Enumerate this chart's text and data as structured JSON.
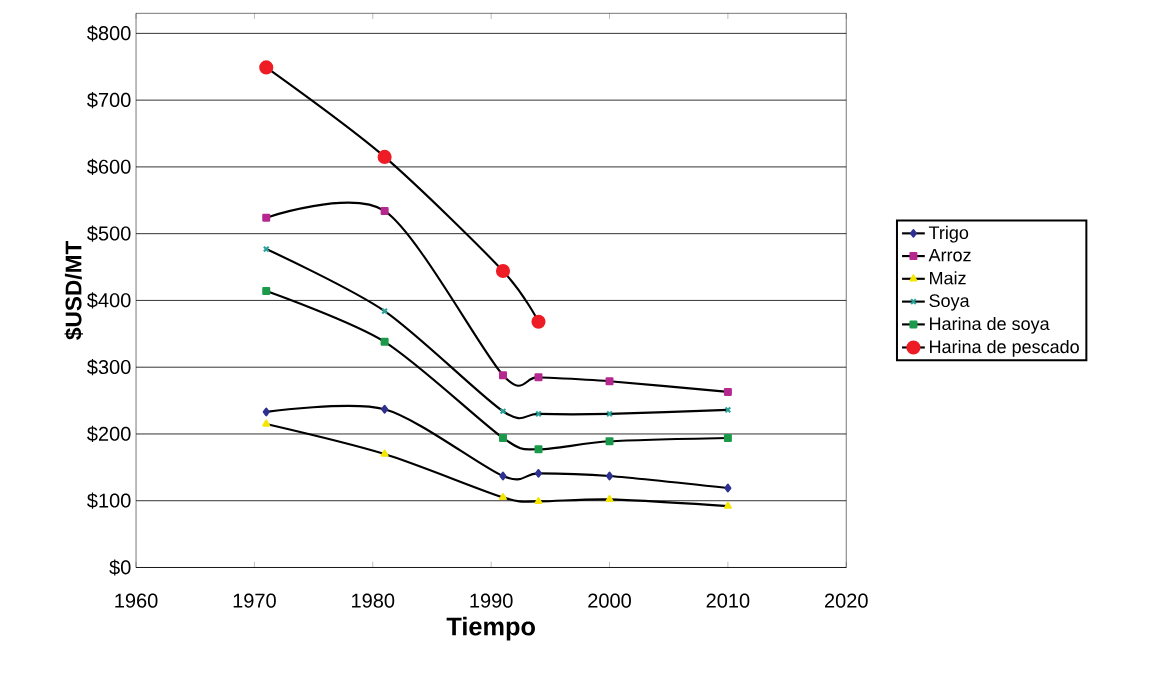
{
  "chart_data": {
    "type": "line",
    "xlabel": "Tiempo",
    "ylabel": "$USD/MT",
    "xlim": [
      1960,
      2020
    ],
    "ylim": [
      0,
      830
    ],
    "xticks": [
      1960,
      1970,
      1980,
      1990,
      2000,
      2010,
      2020
    ],
    "yticks": [
      {
        "value": 0,
        "label": "$0"
      },
      {
        "value": 100,
        "label": "$100"
      },
      {
        "value": 200,
        "label": "$200"
      },
      {
        "value": 300,
        "label": "$300"
      },
      {
        "value": 400,
        "label": "$400"
      },
      {
        "value": 500,
        "label": "$500"
      },
      {
        "value": 600,
        "label": "$600"
      },
      {
        "value": 700,
        "label": "$700"
      },
      {
        "value": 800,
        "label": "$800"
      }
    ],
    "grid": "y",
    "legend": "right",
    "series": [
      {
        "name": "Trigo",
        "color": "#2e3192",
        "marker": "diamond",
        "x": [
          1971,
          1981,
          1991,
          1994,
          2000,
          2010
        ],
        "values": [
          233,
          237,
          137,
          141,
          137,
          119
        ]
      },
      {
        "name": "Arroz",
        "color": "#b5288e",
        "marker": "square",
        "x": [
          1971,
          1981,
          1991,
          1994,
          2000,
          2010
        ],
        "values": [
          524,
          534,
          288,
          285,
          279,
          263
        ]
      },
      {
        "name": "Maiz",
        "color": "#f4e600",
        "marker": "triangle",
        "x": [
          1971,
          1981,
          1991,
          1994,
          2000,
          2010
        ],
        "values": [
          215,
          170,
          105,
          99,
          102,
          92
        ]
      },
      {
        "name": "Soya",
        "color": "#2aa198",
        "marker": "cross",
        "x": [
          1971,
          1981,
          1991,
          1994,
          2000,
          2010
        ],
        "values": [
          477,
          384,
          234,
          230,
          230,
          236
        ]
      },
      {
        "name": "Harina de soya",
        "color": "#1a9a4a",
        "marker": "square",
        "x": [
          1971,
          1981,
          1991,
          1994,
          2000,
          2010
        ],
        "values": [
          414,
          338,
          194,
          177,
          189,
          194
        ]
      },
      {
        "name": "Harina de pescado",
        "color": "#ee1c25",
        "marker": "circle",
        "x": [
          1971,
          1981,
          1991,
          1994
        ],
        "values": [
          749,
          615,
          444,
          368
        ]
      }
    ]
  }
}
